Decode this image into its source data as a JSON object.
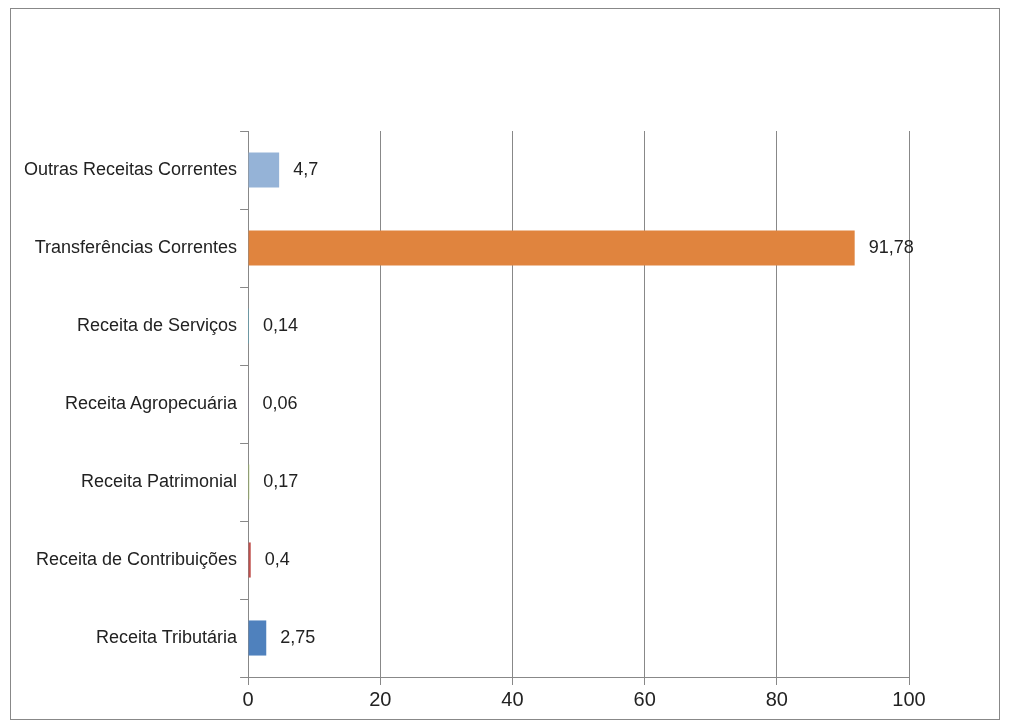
{
  "chart_data": {
    "type": "bar",
    "orientation": "horizontal",
    "categories": [
      "Outras Receitas Correntes",
      "Transferências Correntes",
      "Receita de Serviços",
      "Receita Agropecuária",
      "Receita Patrimonial",
      "Receita de Contribuições",
      "Receita Tributária"
    ],
    "values": [
      4.7,
      91.78,
      0.14,
      0.06,
      0.17,
      0.4,
      2.75
    ],
    "value_labels": [
      "4,7",
      "91,78",
      "0,14",
      "0,06",
      "0,17",
      "0,4",
      "2,75"
    ],
    "colors": [
      "#95b3d7",
      "#e0843e",
      "#4bacc6",
      "#8064a2",
      "#9bbb59",
      "#c0504d",
      "#4f81bd"
    ],
    "xlim": [
      0,
      100
    ],
    "xticks": [
      0,
      20,
      40,
      60,
      80,
      100
    ],
    "grid": "x",
    "legend": false
  }
}
